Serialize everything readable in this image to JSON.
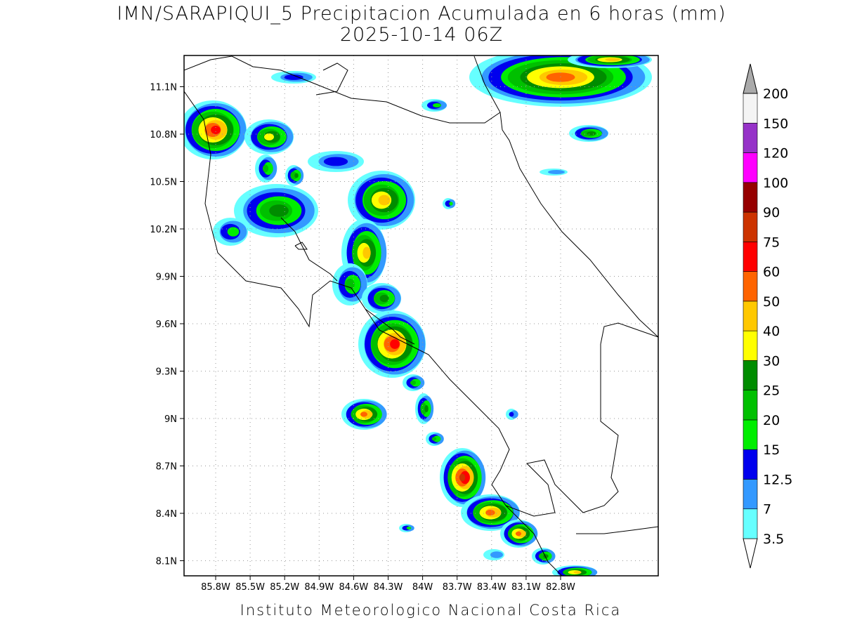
{
  "title": [
    "IMN/SARAPIQUI_5 Precipitacion Acumulada en 6 horas (mm)",
    "2025-10-14 06Z"
  ],
  "map": {
    "lat_labels": [
      "11.1N",
      "10.8N",
      "10.5N",
      "10.2N",
      "9.9N",
      "9.6N",
      "9.3N",
      "9N",
      "8.7N",
      "8.4N",
      "8.1N"
    ],
    "lon_labels": [
      "85.8W",
      "85.5W",
      "85.2W",
      "84.9W",
      "84.6W",
      "84.3W",
      "84W",
      "83.7W",
      "83.4W",
      "83.1W",
      "82.8W"
    ]
  },
  "colorbar": {
    "labels": [
      "3.5",
      "7",
      "12.5",
      "15",
      "20",
      "25",
      "30",
      "40",
      "50",
      "60",
      "75",
      "90",
      "100",
      "120",
      "150",
      "200"
    ],
    "colors": [
      "#66ffff",
      "#3399ff",
      "#0000ee",
      "#00ee00",
      "#00c000",
      "#008c00",
      "#ffff00",
      "#ffc800",
      "#ff6400",
      "#ff0000",
      "#cc3300",
      "#960000",
      "#ff00ff",
      "#9632c8",
      "#f4f4f4"
    ],
    "under_color": "#ffffff",
    "over_color": "#aaaaaa"
  },
  "footer": "Instituto Meteorologico Nacional Costa Rica"
}
